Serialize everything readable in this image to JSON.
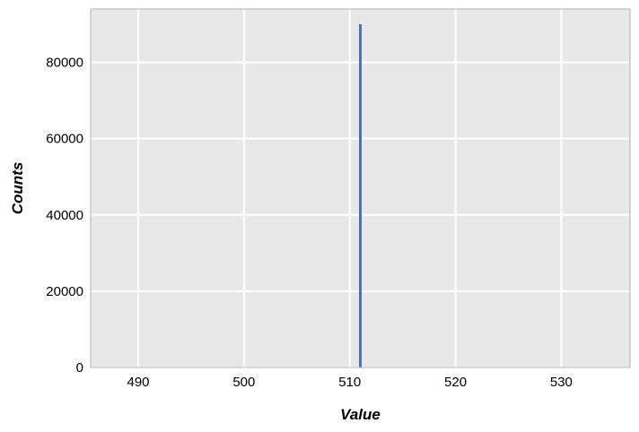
{
  "chart_data": {
    "type": "bar",
    "title": "",
    "xlabel": "Value",
    "ylabel": "Counts",
    "xlim": [
      485.5,
      536.5
    ],
    "ylim": [
      0,
      94000
    ],
    "x_ticks": [
      490,
      500,
      510,
      520,
      530
    ],
    "x_tick_labels": [
      "490",
      "500",
      "510",
      "520",
      "530"
    ],
    "y_ticks": [
      0,
      20000,
      40000,
      60000,
      80000
    ],
    "y_tick_labels": [
      "0",
      "20000",
      "40000",
      "60000",
      "80000"
    ],
    "grid": true,
    "series": [
      {
        "x": [
          511
        ],
        "values": [
          90000
        ]
      }
    ],
    "colors": {
      "bar": "#4c72b0",
      "plot_background": "#e8e8e8",
      "grid": "#ffffff",
      "frame": "#b0b0b0"
    }
  }
}
